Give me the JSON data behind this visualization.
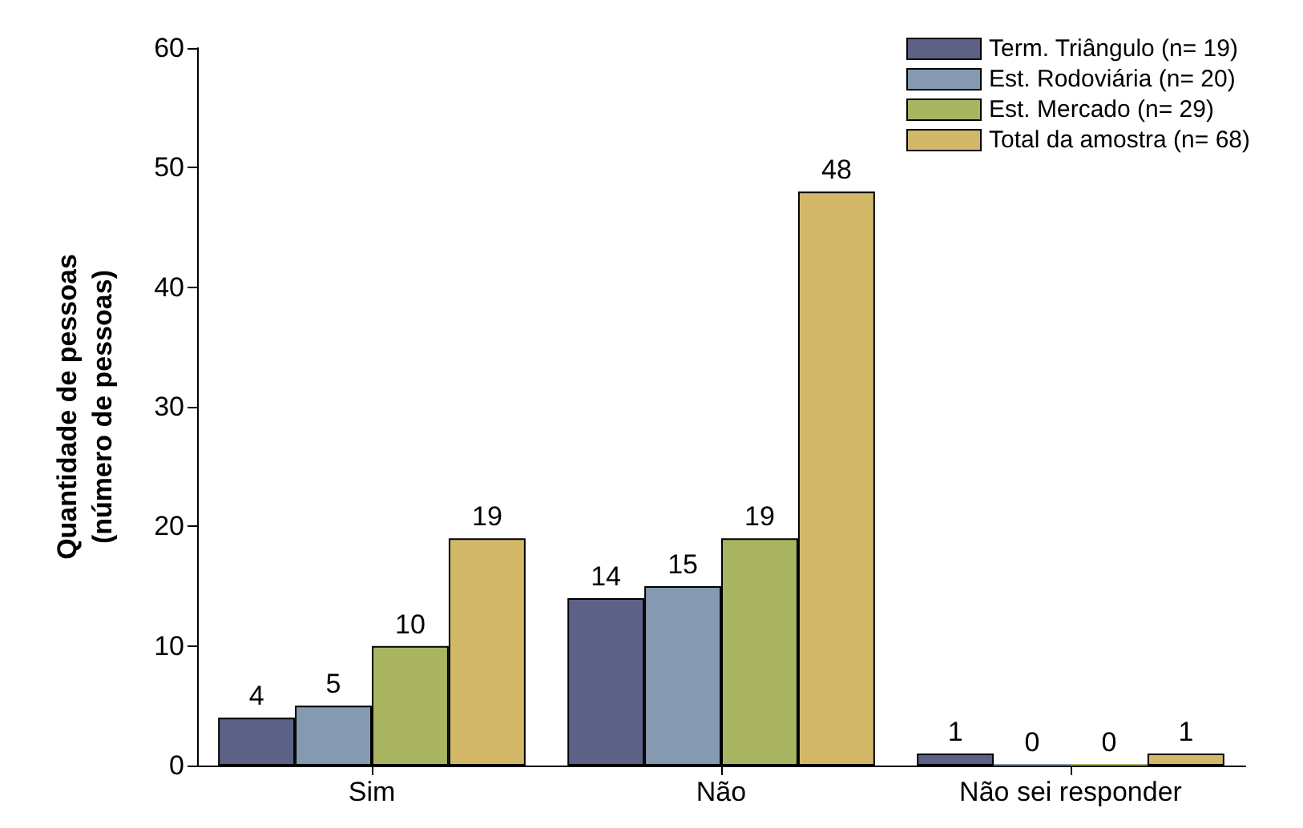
{
  "chart_data": {
    "type": "bar",
    "ylabel": "Quantidade de pessoas\n(número de pessoas)",
    "categories": [
      "Sim",
      "Não",
      "Não sei responder"
    ],
    "series": [
      {
        "name": "Term. Triângulo (n= 19)",
        "color": "#5c6185",
        "values": [
          4,
          14,
          1
        ]
      },
      {
        "name": "Est. Rodoviária (n= 20)",
        "color": "#8599b0",
        "values": [
          5,
          15,
          0
        ]
      },
      {
        "name": "Est. Mercado (n= 29)",
        "color": "#a9b561",
        "values": [
          10,
          19,
          0
        ]
      },
      {
        "name": "Total da amostra (n= 68)",
        "color": "#d3b86a",
        "values": [
          19,
          48,
          1
        ]
      }
    ],
    "ylim": [
      0,
      60
    ],
    "yticks": [
      0,
      10,
      20,
      30,
      40,
      50,
      60
    ],
    "data_labels": true,
    "legend": "top right",
    "grid": false
  }
}
